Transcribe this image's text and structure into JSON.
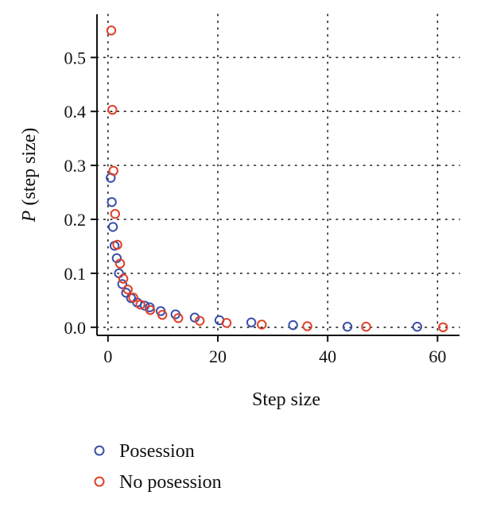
{
  "chart_data": {
    "type": "scatter",
    "title": "",
    "xlabel": "Step size",
    "ylabel_prefix": "P",
    "ylabel_suffix": " (step size)",
    "xlim": [
      -2,
      64
    ],
    "ylim": [
      -0.015,
      0.58
    ],
    "xticks": [
      0,
      20,
      40,
      60
    ],
    "yticks": [
      0.0,
      0.1,
      0.2,
      0.3,
      0.4,
      0.5
    ],
    "ytick_labels": [
      "0.0",
      "0.1",
      "0.2",
      "0.3",
      "0.4",
      "0.5"
    ],
    "grid": "dotted",
    "legend_position": "bottom-left",
    "series": [
      {
        "name": "Posession",
        "color": "#3a4fa8",
        "x": [
          0.5,
          0.7,
          0.9,
          1.2,
          1.6,
          2.0,
          2.6,
          3.3,
          4.2,
          5.3,
          6.7,
          7.6,
          9.6,
          12.3,
          15.8,
          20.3,
          26.1,
          33.7,
          43.6,
          56.3
        ],
        "y": [
          0.277,
          0.232,
          0.186,
          0.151,
          0.128,
          0.1,
          0.08,
          0.064,
          0.054,
          0.046,
          0.04,
          0.037,
          0.03,
          0.024,
          0.018,
          0.013,
          0.009,
          0.004,
          0.001,
          0.001
        ]
      },
      {
        "name": "No posession",
        "color": "#e0402a",
        "x": [
          0.6,
          0.8,
          1.0,
          1.3,
          1.7,
          2.2,
          2.8,
          3.6,
          4.6,
          5.9,
          7.7,
          9.9,
          12.8,
          16.7,
          21.6,
          28.0,
          36.3,
          47.0,
          61.0
        ],
        "y": [
          0.55,
          0.403,
          0.29,
          0.21,
          0.153,
          0.118,
          0.09,
          0.07,
          0.055,
          0.042,
          0.032,
          0.023,
          0.017,
          0.012,
          0.008,
          0.005,
          0.002,
          0.001,
          0.0
        ]
      }
    ]
  }
}
